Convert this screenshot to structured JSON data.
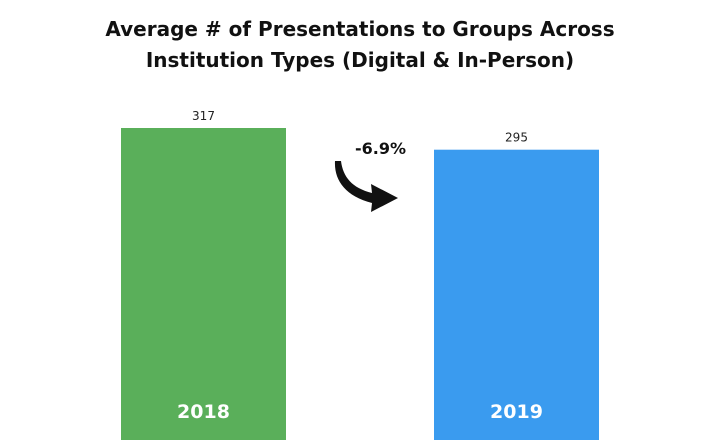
{
  "chart_data": {
    "type": "bar",
    "title_lines": [
      "Average # of Presentations to Groups Across",
      "Institution Types (Digital & In-Person)"
    ],
    "categories": [
      "2018",
      "2019"
    ],
    "values": [
      317,
      295
    ],
    "value_labels": [
      "317",
      "295"
    ],
    "colors": [
      "#5aaf5a",
      "#3a9bef"
    ],
    "change_annotation": "-6.9%",
    "xlabel": "",
    "ylabel": "",
    "grid": false
  }
}
